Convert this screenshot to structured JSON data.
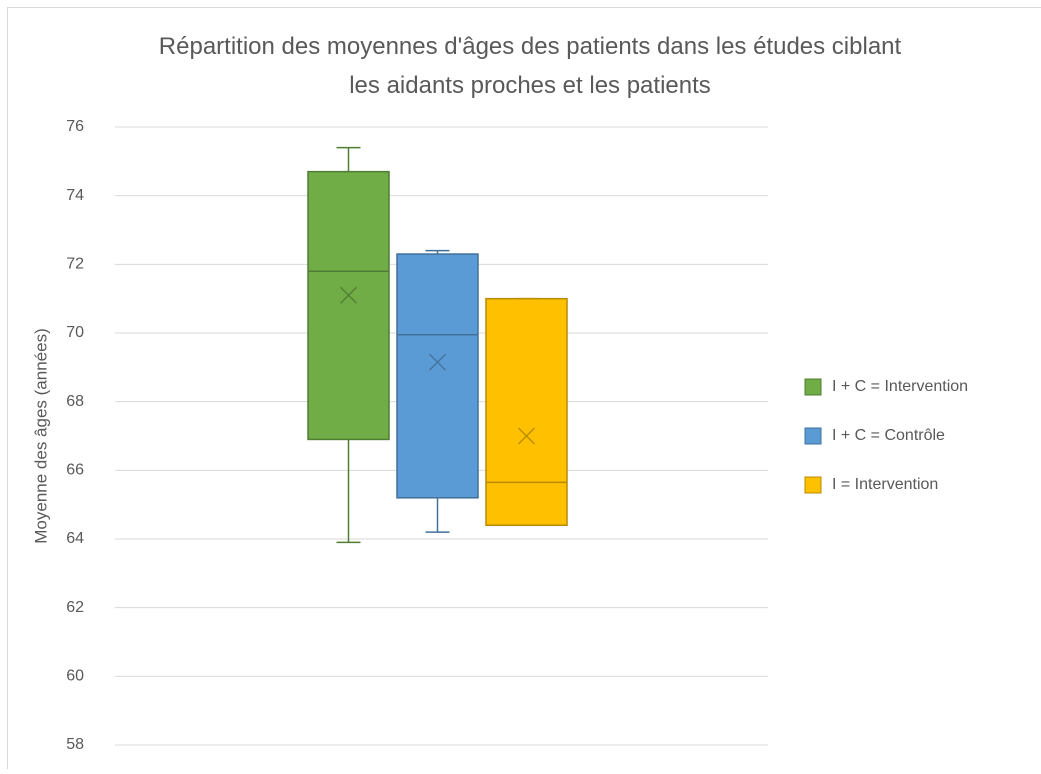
{
  "chart_data": {
    "type": "box",
    "title": "Répartition des moyennes d'âges des patients dans les études ciblant les aidants proches et les patients",
    "y_label": "Moyenne des âges (années)",
    "ylim": [
      58,
      76
    ],
    "yticks": [
      58,
      60,
      62,
      64,
      66,
      68,
      70,
      72,
      74,
      76
    ],
    "grid": true,
    "legend": "right",
    "series": [
      {
        "name": "I + C = Intervention",
        "color": "#70ad47",
        "min": 63.9,
        "q1": 66.9,
        "median": 71.8,
        "q3": 74.7,
        "max": 75.4,
        "mean": 71.1
      },
      {
        "name": "I + C = Contrôle",
        "color": "#5b9bd5",
        "min": 64.2,
        "q1": 65.2,
        "median": 69.95,
        "q3": 72.3,
        "max": 72.4,
        "mean": 69.15
      },
      {
        "name": "I = Intervention",
        "color": "#ffc000",
        "min": 64.4,
        "q1": 64.4,
        "median": 65.65,
        "q3": 71.0,
        "max": 71.0,
        "mean": 67.0
      }
    ]
  }
}
